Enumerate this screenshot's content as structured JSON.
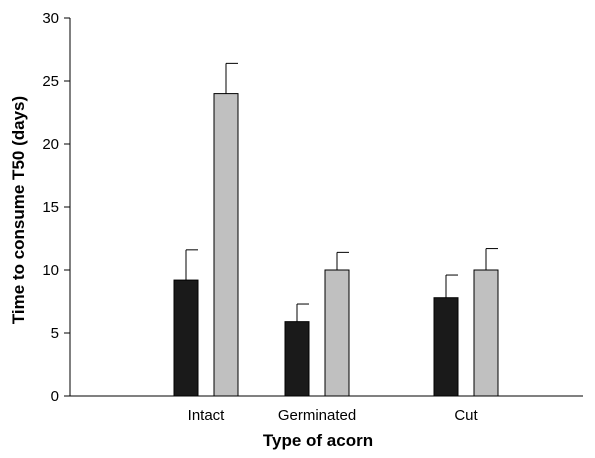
{
  "chart_data": {
    "type": "bar",
    "title": "",
    "xlabel": "Type of acorn",
    "ylabel": "Time to consume T50 (days)",
    "categories": [
      "Intact",
      "Germinated",
      "Cut"
    ],
    "ylim": [
      0,
      30
    ],
    "yticks": [
      0,
      5,
      10,
      15,
      20,
      25,
      30
    ],
    "series": [
      {
        "color": "#1a1a1a",
        "values": [
          9.2,
          5.9,
          7.8
        ],
        "errors": [
          2.4,
          1.4,
          1.8
        ]
      },
      {
        "color": "#c0c0c0",
        "values": [
          24.0,
          10.0,
          10.0
        ],
        "errors": [
          2.4,
          1.4,
          1.7
        ]
      }
    ],
    "grid": false,
    "legend": "none"
  }
}
